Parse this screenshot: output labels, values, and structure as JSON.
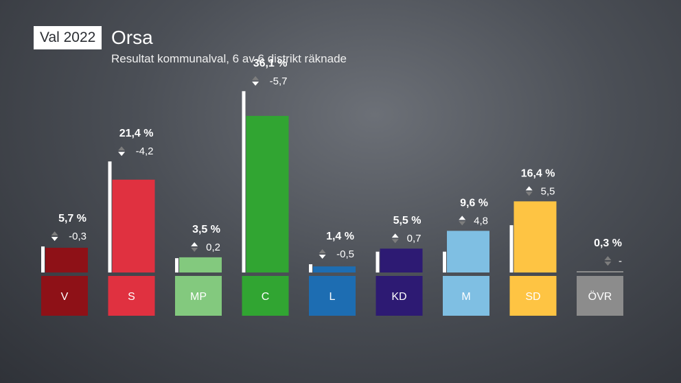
{
  "header": {
    "badge": "Val 2022",
    "title": "Orsa",
    "subtitle": "Resultat kommunalval, 6 av 6 distrikt räknade"
  },
  "chart_data": {
    "type": "bar",
    "categories": [
      "V",
      "S",
      "MP",
      "C",
      "L",
      "KD",
      "M",
      "SD",
      "ÖVR"
    ],
    "values": [
      5.7,
      21.4,
      3.5,
      36.1,
      1.4,
      5.5,
      9.6,
      16.4,
      0.3
    ],
    "value_labels": [
      "5,7 %",
      "21,4 %",
      "3,5 %",
      "36,1 %",
      "1,4 %",
      "5,5 %",
      "9,6 %",
      "16,4 %",
      "0,3 %"
    ],
    "previous_values": [
      6.0,
      25.6,
      3.3,
      41.8,
      1.9,
      4.8,
      4.8,
      10.9,
      null
    ],
    "change_labels": [
      "-0,3",
      "-4,2",
      "0,2",
      "-5,7",
      "-0,5",
      "0,7",
      "4,8",
      "5,5",
      "-"
    ],
    "colors": [
      "#8e1117",
      "#e03140",
      "#83c97e",
      "#31a532",
      "#1d6db2",
      "#2d1a73",
      "#7fbfe3",
      "#fec443",
      "#8c8c8c"
    ],
    "ylim": [
      0,
      42
    ]
  }
}
